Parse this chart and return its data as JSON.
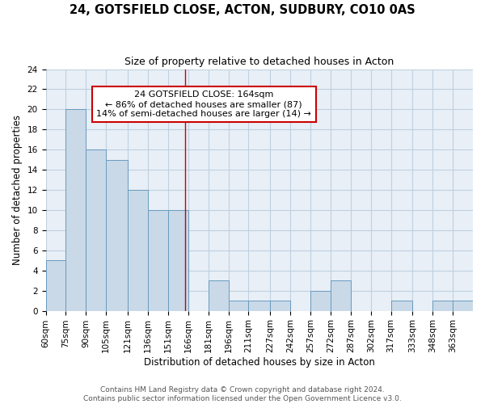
{
  "title": "24, GOTSFIELD CLOSE, ACTON, SUDBURY, CO10 0AS",
  "subtitle": "Size of property relative to detached houses in Acton",
  "xlabel": "Distribution of detached houses by size in Acton",
  "ylabel": "Number of detached properties",
  "bin_labels": [
    "60sqm",
    "75sqm",
    "90sqm",
    "105sqm",
    "121sqm",
    "136sqm",
    "151sqm",
    "166sqm",
    "181sqm",
    "196sqm",
    "211sqm",
    "227sqm",
    "242sqm",
    "257sqm",
    "272sqm",
    "287sqm",
    "302sqm",
    "317sqm",
    "333sqm",
    "348sqm",
    "363sqm"
  ],
  "bin_edges": [
    60,
    75,
    90,
    105,
    121,
    136,
    151,
    166,
    181,
    196,
    211,
    227,
    242,
    257,
    272,
    287,
    302,
    317,
    333,
    348,
    363,
    378
  ],
  "counts": [
    5,
    20,
    16,
    15,
    12,
    10,
    10,
    0,
    3,
    1,
    1,
    1,
    0,
    2,
    3,
    0,
    0,
    1,
    0,
    1,
    1
  ],
  "ylim": [
    0,
    24
  ],
  "yticks": [
    0,
    2,
    4,
    6,
    8,
    10,
    12,
    14,
    16,
    18,
    20,
    22,
    24
  ],
  "bar_color": "#c9d9e8",
  "bar_edge_color": "#6a9bbf",
  "grid_color": "#c0d0e0",
  "background_color": "#e8eff7",
  "ref_line_x": 164,
  "annotation_box_text": "24 GOTSFIELD CLOSE: 164sqm\n← 86% of detached houses are smaller (87)\n14% of semi-detached houses are larger (14) →",
  "annotation_box_color": "#cc0000",
  "footer_text": "Contains HM Land Registry data © Crown copyright and database right 2024.\nContains public sector information licensed under the Open Government Licence v3.0.",
  "title_fontsize": 10.5,
  "subtitle_fontsize": 9,
  "axis_label_fontsize": 8.5,
  "tick_fontsize": 7.5,
  "annot_fontsize": 8,
  "footer_fontsize": 6.5
}
